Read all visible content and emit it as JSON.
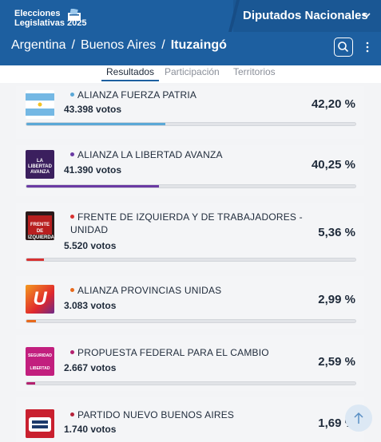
{
  "header": {
    "logo_line1": "Elecciones",
    "logo_line2": "Legislativas 2025",
    "chamber": "Diputados Nacionales",
    "breadcrumb": [
      "Argentina",
      "Buenos Aires",
      "Ituzaingó"
    ],
    "breadcrumb_separator": "/"
  },
  "tabs": [
    {
      "label": "Resultados",
      "active": true
    },
    {
      "label": "Participación",
      "active": false
    },
    {
      "label": "Territorios",
      "active": false
    }
  ],
  "results": [
    {
      "name": "ALIANZA FUERZA PATRIA",
      "votes": "43.398 votos",
      "percent": "42,20 %",
      "fraction": 0.422,
      "color": "#5ba8d6",
      "logo": "argentina-flag"
    },
    {
      "name": "ALIANZA LA LIBERTAD AVANZA",
      "votes": "41.390 votos",
      "percent": "40,25 %",
      "fraction": 0.4025,
      "color": "#6a3aa3",
      "logo": "la-libertad-avanza"
    },
    {
      "name": "FRENTE DE IZQUIERDA Y DE TRABAJADORES - UNIDAD",
      "votes": "5.520 votos",
      "percent": "5,36 %",
      "fraction": 0.0536,
      "color": "#d83232",
      "logo": "frente-de-izquierda"
    },
    {
      "name": "ALIANZA PROVINCIAS UNIDAS",
      "votes": "3.083 votos",
      "percent": "2,99 %",
      "fraction": 0.0299,
      "color": "#e86a1c",
      "logo": "provincias-unidas"
    },
    {
      "name": "PROPUESTA FEDERAL PARA EL CAMBIO",
      "votes": "2.667 votos",
      "percent": "2,59 %",
      "fraction": 0.0259,
      "color": "#b4216f",
      "logo": "seguridad-libertad"
    },
    {
      "name": "PARTIDO NUEVO BUENOS AIRES",
      "votes": "1.740 votos",
      "percent": "1,69 %",
      "fraction": 0.0169,
      "color": "#b5233a",
      "logo": "nuevo-buenos-aires"
    }
  ],
  "logo_texts": {
    "lla": "LA LIBERTAD AVANZA",
    "fit": "FRENTE DE IZQUIERDA",
    "pu": "U",
    "pfc_top": "SEGURIDAD",
    "pfc_bottom": "LIBERTAD"
  }
}
